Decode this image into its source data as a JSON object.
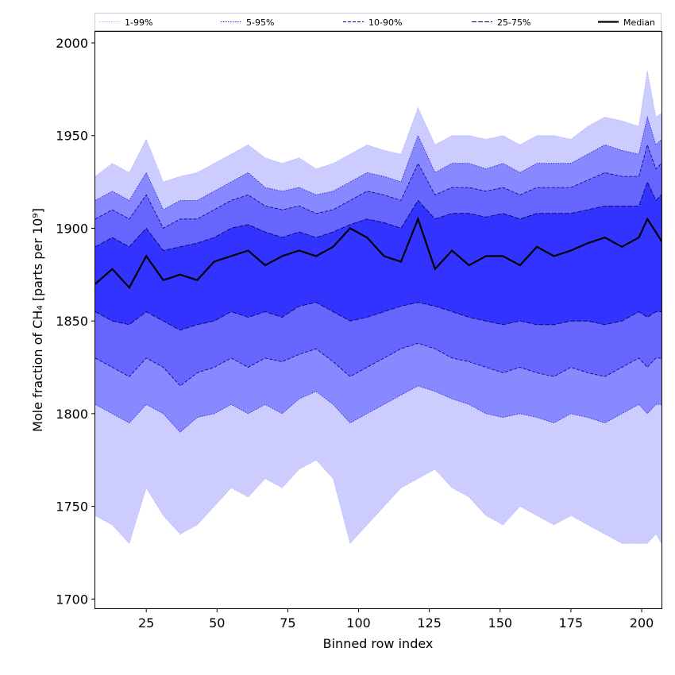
{
  "chart_data": {
    "type": "area",
    "xlabel": "Binned row index",
    "ylabel": "Mole fraction of CH₄ [parts per 10⁹]",
    "xlim": [
      7,
      207
    ],
    "ylim": [
      1695,
      2006
    ],
    "xticks": [
      25,
      50,
      75,
      100,
      125,
      150,
      175,
      200
    ],
    "yticks": [
      1700,
      1750,
      1800,
      1850,
      1900,
      1950,
      2000
    ],
    "legend_placement": "top (horizontal, above plot)",
    "x": [
      7,
      13,
      19,
      25,
      31,
      37,
      43,
      49,
      55,
      61,
      67,
      73,
      79,
      85,
      91,
      97,
      103,
      109,
      115,
      121,
      127,
      133,
      139,
      145,
      151,
      157,
      163,
      169,
      175,
      181,
      187,
      193,
      199,
      202,
      205,
      207
    ],
    "bands": [
      {
        "name": "1-99%",
        "lower": [
          1745,
          1740,
          1730,
          1760,
          1745,
          1735,
          1740,
          1750,
          1760,
          1755,
          1765,
          1760,
          1770,
          1775,
          1765,
          1730,
          1740,
          1750,
          1760,
          1765,
          1770,
          1760,
          1755,
          1745,
          1740,
          1750,
          1745,
          1740,
          1745,
          1740,
          1735,
          1730,
          1730,
          1730,
          1735,
          1730
        ],
        "upper": [
          1928,
          1935,
          1930,
          1948,
          1925,
          1928,
          1930,
          1935,
          1940,
          1945,
          1938,
          1935,
          1938,
          1932,
          1935,
          1940,
          1945,
          1942,
          1940,
          1965,
          1945,
          1950,
          1950,
          1948,
          1950,
          1945,
          1950,
          1950,
          1948,
          1955,
          1960,
          1958,
          1955,
          1985,
          1960,
          1962
        ],
        "color": "#ccccff"
      },
      {
        "name": "5-95%",
        "lower": [
          1805,
          1800,
          1795,
          1805,
          1800,
          1790,
          1798,
          1800,
          1805,
          1800,
          1805,
          1800,
          1808,
          1812,
          1805,
          1795,
          1800,
          1805,
          1810,
          1815,
          1812,
          1808,
          1805,
          1800,
          1798,
          1800,
          1798,
          1795,
          1800,
          1798,
          1795,
          1800,
          1805,
          1800,
          1805,
          1805
        ],
        "upper": [
          1915,
          1920,
          1915,
          1930,
          1910,
          1915,
          1915,
          1920,
          1925,
          1930,
          1922,
          1920,
          1922,
          1918,
          1920,
          1925,
          1930,
          1928,
          1925,
          1950,
          1930,
          1935,
          1935,
          1932,
          1935,
          1930,
          1935,
          1935,
          1935,
          1940,
          1945,
          1942,
          1940,
          1960,
          1945,
          1948
        ],
        "color": "#8888ff"
      },
      {
        "name": "10-90%",
        "lower": [
          1830,
          1825,
          1820,
          1830,
          1825,
          1815,
          1822,
          1825,
          1830,
          1825,
          1830,
          1828,
          1832,
          1835,
          1828,
          1820,
          1825,
          1830,
          1835,
          1838,
          1835,
          1830,
          1828,
          1825,
          1822,
          1825,
          1822,
          1820,
          1825,
          1822,
          1820,
          1825,
          1830,
          1825,
          1830,
          1830
        ],
        "upper": [
          1905,
          1910,
          1905,
          1918,
          1900,
          1905,
          1905,
          1910,
          1915,
          1918,
          1912,
          1910,
          1912,
          1908,
          1910,
          1915,
          1920,
          1918,
          1915,
          1935,
          1918,
          1922,
          1922,
          1920,
          1922,
          1918,
          1922,
          1922,
          1922,
          1926,
          1930,
          1928,
          1928,
          1945,
          1932,
          1935
        ],
        "color": "#6666ff"
      },
      {
        "name": "25-75%",
        "lower": [
          1855,
          1850,
          1848,
          1855,
          1850,
          1845,
          1848,
          1850,
          1855,
          1852,
          1855,
          1852,
          1858,
          1860,
          1855,
          1850,
          1852,
          1855,
          1858,
          1860,
          1858,
          1855,
          1852,
          1850,
          1848,
          1850,
          1848,
          1848,
          1850,
          1850,
          1848,
          1850,
          1855,
          1852,
          1855,
          1855
        ],
        "upper": [
          1890,
          1895,
          1890,
          1900,
          1888,
          1890,
          1892,
          1895,
          1900,
          1902,
          1898,
          1895,
          1898,
          1895,
          1898,
          1902,
          1905,
          1903,
          1900,
          1915,
          1905,
          1908,
          1908,
          1906,
          1908,
          1905,
          1908,
          1908,
          1908,
          1910,
          1912,
          1912,
          1912,
          1925,
          1915,
          1918
        ],
        "color": "#3333ff"
      }
    ],
    "series": [
      {
        "name": "Median",
        "values": [
          1870,
          1878,
          1868,
          1885,
          1872,
          1875,
          1872,
          1882,
          1885,
          1888,
          1880,
          1885,
          1888,
          1885,
          1890,
          1900,
          1895,
          1885,
          1882,
          1905,
          1878,
          1888,
          1880,
          1885,
          1885,
          1880,
          1890,
          1885,
          1888,
          1892,
          1895,
          1890,
          1895,
          1905,
          1898,
          1893
        ],
        "color": "#000000"
      }
    ]
  }
}
